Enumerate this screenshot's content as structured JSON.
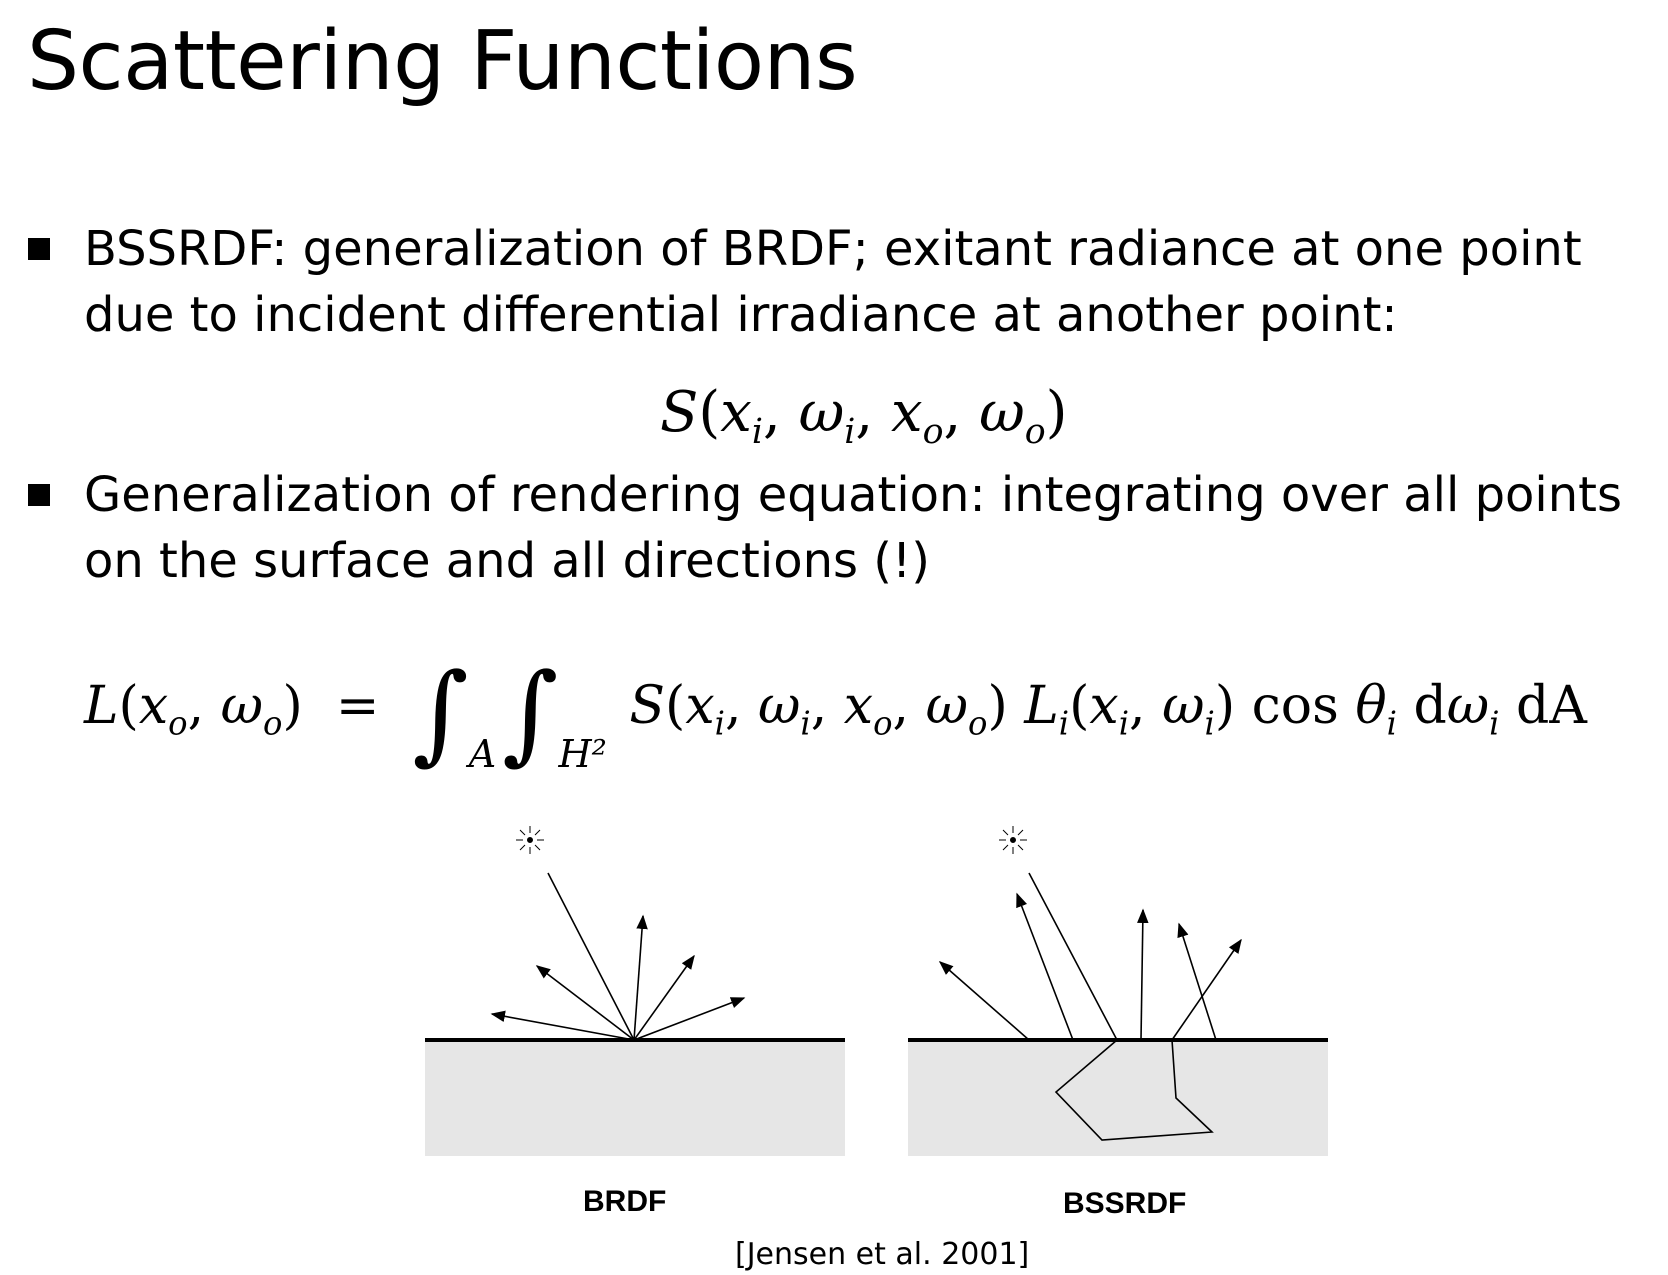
{
  "slide": {
    "title": "Scattering Functions",
    "bullet1": "BSSRDF: generalization of BRDF; exitant radiance at one point due to incident differential irradiance at another point:",
    "bullet2": "Generalization of rendering equation: integrating over all points on the surface and all directions (!)",
    "eq1": {
      "S": "S",
      "open": "(",
      "x": "x",
      "i": "i",
      "comma": ",",
      "w": "ω",
      "o": "o",
      "close": ")"
    },
    "eq2": {
      "L": "L",
      "equals": "=",
      "integral": "∫",
      "A": "A",
      "H2": "H²",
      "Li": "L",
      "cos": "cos",
      "theta": "θ",
      "d": "d"
    }
  },
  "figure": {
    "left_label": "BRDF",
    "right_label": "BSSRDF",
    "citation": "[Jensen et al. 2001]"
  },
  "colors": {
    "surface_fill": "#e6e6e6",
    "line": "#000000"
  }
}
